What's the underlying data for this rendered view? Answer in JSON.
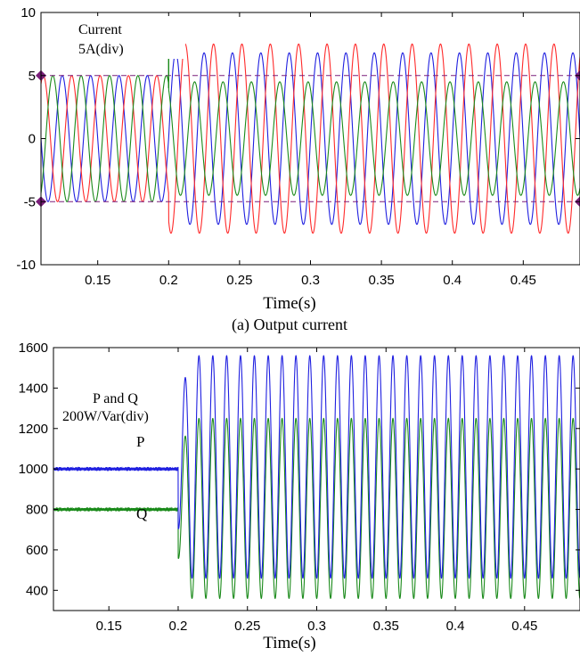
{
  "chart_data": [
    {
      "id": "current",
      "type": "line",
      "caption": "(a) Output current",
      "xlabel": "Time(s)",
      "ylabel": "",
      "xlim": [
        0.11,
        0.49
      ],
      "ylim": [
        -10,
        10
      ],
      "xticks": [
        "0.15",
        "0.2",
        "0.25",
        "0.3",
        "0.35",
        "0.4",
        "0.45"
      ],
      "xtick_values": [
        0.15,
        0.2,
        0.25,
        0.3,
        0.35,
        0.4,
        0.45
      ],
      "yticks": [
        "10",
        "5",
        "0",
        "-5",
        "-10"
      ],
      "ytick_values": [
        10,
        5,
        0,
        -5,
        -10
      ],
      "grid": false,
      "annotation_lines": [
        "Current",
        "5A(div)"
      ],
      "reference_lines": [
        {
          "y": 5,
          "color": "#7a1f7a",
          "style": "dashed"
        },
        {
          "y": -5,
          "color": "#7a1f7a",
          "style": "dashed"
        }
      ],
      "step_time": 0.2,
      "frequency_hz": 50,
      "series": [
        {
          "phase_deg": 0,
          "amplitude_before": 5,
          "amplitude_after": 6.8,
          "color": "#1f1fe0"
        },
        {
          "phase_deg": -120,
          "amplitude_before": 5,
          "amplitude_after": 7.5,
          "color": "#ff2a2a"
        },
        {
          "phase_deg": 120,
          "amplitude_before": 5,
          "amplitude_after": 4.5,
          "color": "#1a8a1a"
        }
      ],
      "spike": {
        "x": 0.2,
        "y": 8.2,
        "color": "#1a8a1a"
      }
    },
    {
      "id": "power",
      "type": "line",
      "xlabel": "Time(s)",
      "ylabel": "",
      "xlim": [
        0.11,
        0.49
      ],
      "ylim": [
        300,
        1600
      ],
      "xticks": [
        "0.15",
        "0.2",
        "0.25",
        "0.3",
        "0.35",
        "0.4",
        "0.45"
      ],
      "xtick_values": [
        0.15,
        0.2,
        0.25,
        0.3,
        0.35,
        0.4,
        0.45
      ],
      "yticks": [
        "1600",
        "1400",
        "1200",
        "1000",
        "800",
        "600",
        "400"
      ],
      "ytick_values": [
        1600,
        1400,
        1200,
        1000,
        800,
        600,
        400
      ],
      "grid": false,
      "annotation_lines": [
        "P and Q",
        "200W/Var(div)"
      ],
      "step_time": 0.2,
      "oscillation_hz": 100,
      "series": [
        {
          "name": "P",
          "label_color": "#3a8fd8",
          "color": "#1f1fe0",
          "before": 1000,
          "after_min": 460,
          "after_max": 1560
        },
        {
          "name": "Q",
          "label_color": "#5a9a2a",
          "color": "#1a8a1a",
          "before": 800,
          "after_min": 360,
          "after_max": 1250
        }
      ]
    }
  ]
}
